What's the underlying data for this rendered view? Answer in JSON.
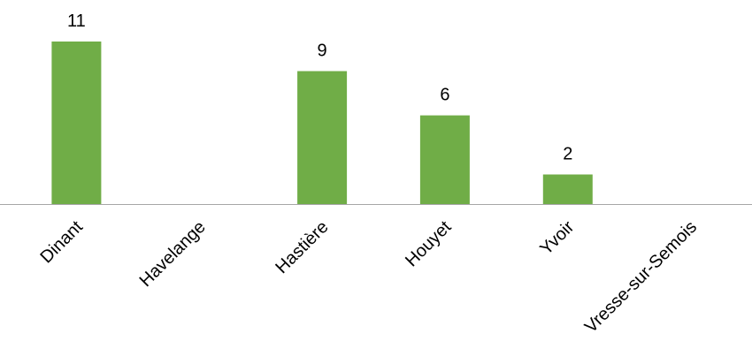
{
  "chart_data": {
    "type": "bar",
    "title": "",
    "xlabel": "",
    "ylabel": "",
    "categories": [
      "Dinant",
      "Havelange",
      "Hastière",
      "Houyet",
      "Yvoir",
      "Vresse-sur-Semois"
    ],
    "values": [
      11,
      null,
      9,
      6,
      2,
      null
    ],
    "data_labels": [
      "11",
      "",
      "9",
      "6",
      "2",
      ""
    ],
    "ylim": [
      0,
      11
    ],
    "grid": false,
    "legend": "none",
    "bar_color": "#70ad47",
    "axis_color": "#a6a6a6"
  }
}
